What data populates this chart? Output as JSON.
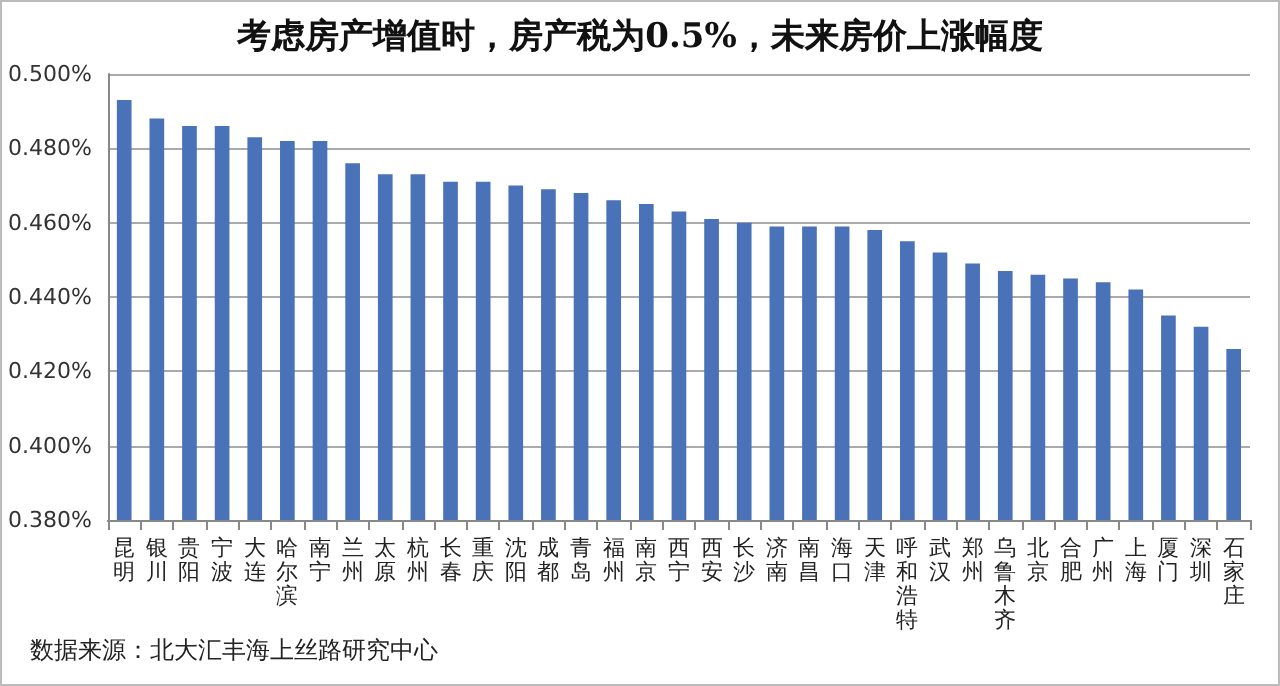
{
  "chart_data": {
    "type": "bar",
    "title": "考虑房产增值时，房产税为0.5%，未来房价上涨幅度",
    "categories": [
      "昆明",
      "银川",
      "贵阳",
      "宁波",
      "大连",
      "哈尔滨",
      "南宁",
      "兰州",
      "太原",
      "杭州",
      "长春",
      "重庆",
      "沈阳",
      "成都",
      "青岛",
      "福州",
      "南京",
      "西宁",
      "西安",
      "长沙",
      "济南",
      "南昌",
      "海口",
      "天津",
      "呼和浩特",
      "武汉",
      "郑州",
      "乌鲁木齐",
      "北京",
      "合肥",
      "广州",
      "上海",
      "厦门",
      "深圳",
      "石家庄"
    ],
    "values": [
      0.493,
      0.488,
      0.486,
      0.486,
      0.483,
      0.482,
      0.482,
      0.476,
      0.473,
      0.473,
      0.471,
      0.471,
      0.47,
      0.469,
      0.468,
      0.466,
      0.465,
      0.463,
      0.461,
      0.46,
      0.459,
      0.459,
      0.459,
      0.458,
      0.455,
      0.452,
      0.449,
      0.447,
      0.446,
      0.445,
      0.444,
      0.442,
      0.435,
      0.432,
      0.426
    ],
    "color": "#4a72b8",
    "ylim": [
      0.38,
      0.5
    ],
    "yticks": [
      {
        "value": 0.38,
        "label": "0.380%"
      },
      {
        "value": 0.4,
        "label": "0.400%"
      },
      {
        "value": 0.42,
        "label": "0.420%"
      },
      {
        "value": 0.44,
        "label": "0.440%"
      },
      {
        "value": 0.46,
        "label": "0.460%"
      },
      {
        "value": 0.48,
        "label": "0.480%"
      },
      {
        "value": 0.5,
        "label": "0.500%"
      }
    ],
    "grid": "y",
    "annotations": [
      "数据来源：北大汇丰海上丝路研究中心"
    ]
  }
}
